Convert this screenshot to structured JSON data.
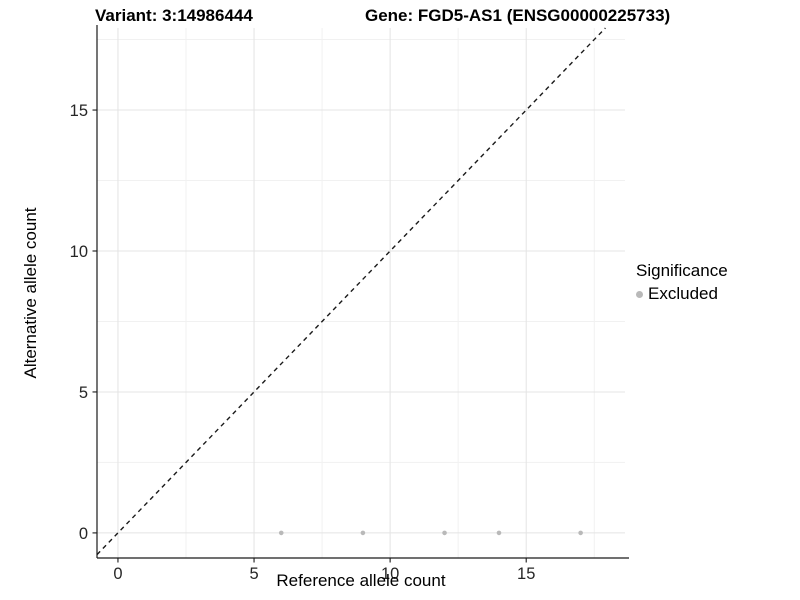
{
  "header": {
    "variant_title": "Variant: 3:14986444",
    "gene_title": "Gene: FGD5-AS1 (ENSG00000225733)"
  },
  "chart_data": {
    "type": "scatter",
    "title_left": "Variant: 3:14986444",
    "title_right": "Gene: FGD5-AS1 (ENSG00000225733)",
    "xlabel": "Reference allele count",
    "ylabel": "Alternative allele count",
    "xlim": [
      -0.77,
      18.63
    ],
    "ylim": [
      -0.89,
      17.91
    ],
    "x_ticks": [
      0,
      5,
      10,
      15
    ],
    "y_ticks": [
      0,
      5,
      10,
      15
    ],
    "x_minor_ticks": [
      2.5,
      7.5,
      12.5,
      17.5
    ],
    "y_minor_ticks": [
      2.5,
      7.5,
      12.5,
      17.5
    ],
    "grid": true,
    "identity_line": {
      "style": "dashed",
      "slope": 1,
      "intercept": 0,
      "color": "#1a1a1a"
    },
    "series": [
      {
        "name": "Excluded",
        "color": "#b9b9b9",
        "point_radius": 2.3,
        "points": [
          [
            6,
            0
          ],
          [
            9,
            0
          ],
          [
            12,
            0
          ],
          [
            14,
            0
          ],
          [
            17,
            0
          ]
        ]
      }
    ],
    "legend": {
      "title": "Significance",
      "position": "right",
      "items": [
        {
          "label": "Excluded",
          "color": "#b9b9b9"
        }
      ]
    },
    "colors": {
      "background": "#ffffff",
      "grid_major": "#e4e4e4",
      "grid_minor": "#f1f1f1",
      "axis_line": "#1a1a1a",
      "tick_label": "#262626"
    }
  },
  "legend": {
    "title": "Significance",
    "items": [
      {
        "label": "Excluded"
      }
    ]
  },
  "axes": {
    "x_label": "Reference allele count",
    "y_label": "Alternative allele count"
  }
}
